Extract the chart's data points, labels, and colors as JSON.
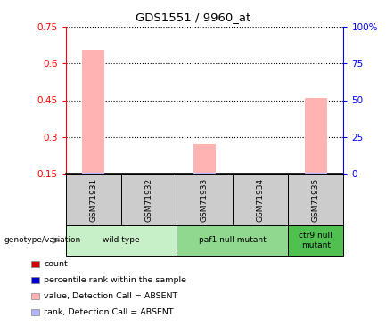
{
  "title": "GDS1551 / 9960_at",
  "samples": [
    "GSM71931",
    "GSM71932",
    "GSM71933",
    "GSM71934",
    "GSM71935"
  ],
  "bar_values": [
    0.655,
    0.0,
    0.27,
    0.0,
    0.46
  ],
  "rank_values": [
    0.155,
    0.0,
    0.155,
    0.0,
    0.155
  ],
  "ylim_left": [
    0.15,
    0.75
  ],
  "ylim_right": [
    0,
    100
  ],
  "yticks_left": [
    0.15,
    0.3,
    0.45,
    0.6,
    0.75
  ],
  "ytick_labels_left": [
    "0.15",
    "0.3",
    "0.45",
    "0.6",
    "0.75"
  ],
  "yticks_right": [
    0,
    25,
    50,
    75,
    100
  ],
  "ytick_labels_right": [
    "0",
    "25",
    "50",
    "75",
    "100%"
  ],
  "bar_color": "#ffb3b3",
  "rank_color": "#b3b3ff",
  "groups": [
    {
      "label": "wild type",
      "samples": [
        0,
        1
      ],
      "color": "#c8f0c8"
    },
    {
      "label": "paf1 null mutant",
      "samples": [
        2,
        3
      ],
      "color": "#90d890"
    },
    {
      "label": "ctr9 null\nmutant",
      "samples": [
        4
      ],
      "color": "#50c050"
    }
  ],
  "genotype_label": "genotype/variation",
  "legend_items": [
    {
      "color": "#cc0000",
      "label": "count"
    },
    {
      "color": "#0000cc",
      "label": "percentile rank within the sample"
    },
    {
      "color": "#ffb3b3",
      "label": "value, Detection Call = ABSENT"
    },
    {
      "color": "#b3b3ff",
      "label": "rank, Detection Call = ABSENT"
    }
  ],
  "sample_box_color": "#cccccc",
  "grid_color": "#000000"
}
